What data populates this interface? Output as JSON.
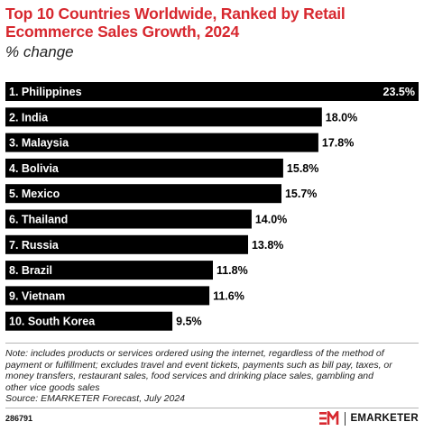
{
  "header": {
    "title": "Top 10 Countries Worldwide, Ranked by Retail Ecommerce Sales Growth, 2024",
    "subtitle": "% change"
  },
  "chart_data": {
    "type": "bar",
    "orientation": "horizontal",
    "categories": [
      "1. Philippines",
      "2. India",
      "3. Malaysia",
      "4. Bolivia",
      "5. Mexico",
      "6. Thailand",
      "7. Russia",
      "8. Brazil",
      "9. Vietnam",
      "10. South Korea"
    ],
    "values": [
      23.5,
      18.0,
      17.8,
      15.8,
      15.7,
      14.0,
      13.8,
      11.8,
      11.6,
      9.5
    ],
    "value_labels": [
      "23.5%",
      "18.0%",
      "17.8%",
      "15.8%",
      "15.7%",
      "14.0%",
      "13.8%",
      "11.8%",
      "11.6%",
      "9.5%"
    ],
    "bar_color": "#000000",
    "grid": false
  },
  "notes": {
    "lines": [
      "Note: includes products or services ordered using the internet, regardless of the method of",
      "payment or fulfillment; excludes travel and event tickets, payments such as bill pay, taxes, or",
      "money transfers, restaurant sales, food services and drinking place sales, gambling and",
      "other vice goods sales",
      "Source: EMARKETER Forecast, July 2024"
    ]
  },
  "footer": {
    "chart_id": "286791",
    "brand": "EMARKETER",
    "brand_icon": "emarketer-logo-icon",
    "accent_color": "#d7282f"
  }
}
